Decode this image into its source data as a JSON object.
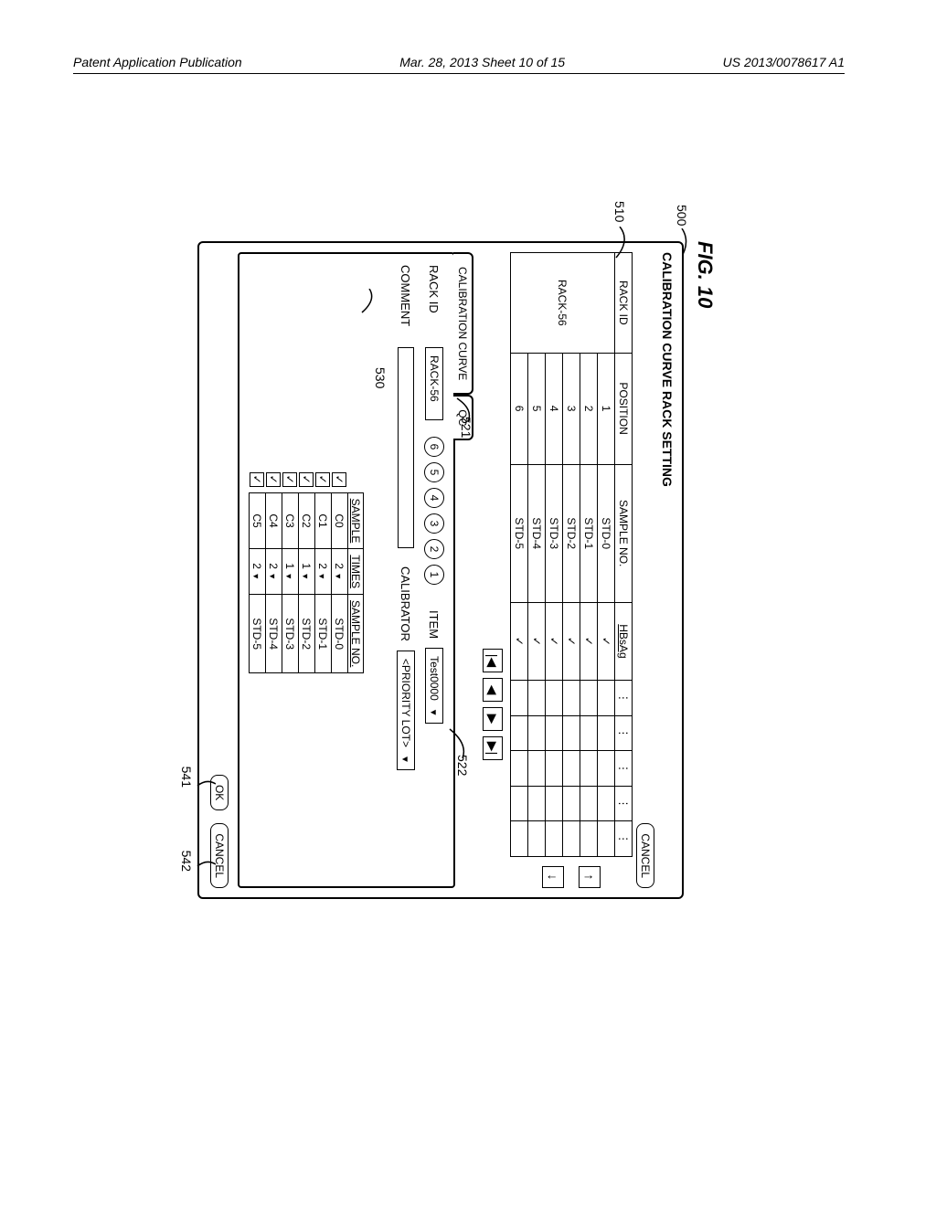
{
  "header": {
    "left": "Patent Application Publication",
    "mid": "Mar. 28, 2013  Sheet 10 of 15",
    "right": "US 2013/0078617 A1"
  },
  "fig_label": "FIG. 10",
  "callouts": {
    "c500": "500",
    "c510": "510",
    "c521": "521",
    "c522": "522",
    "c530": "530",
    "c541": "541",
    "c542": "542"
  },
  "window": {
    "title": "CALIBRATION CURVE RACK SETTING",
    "cancel_top": "CANCEL",
    "table": {
      "headers": [
        "RACK ID",
        "POSITION",
        "SAMPLE NO.",
        "HBsAg",
        "⋮",
        "⋮",
        "⋮",
        "⋮",
        "⋮"
      ],
      "rack_id": "RACK-56",
      "rows": [
        {
          "pos": "1",
          "samp": "STD-0",
          "h": "✓"
        },
        {
          "pos": "2",
          "samp": "STD-1",
          "h": "✓"
        },
        {
          "pos": "3",
          "samp": "STD-2",
          "h": "✓"
        },
        {
          "pos": "4",
          "samp": "STD-3",
          "h": "✓"
        },
        {
          "pos": "5",
          "samp": "STD-4",
          "h": "✓"
        },
        {
          "pos": "6",
          "samp": "STD-5",
          "h": "✓"
        }
      ]
    },
    "arrow_up": "↑",
    "arrow_down": "↓",
    "pager": [
      "|◀",
      "◀",
      "▶",
      "▶|"
    ],
    "tab1": "CALIBRATION CURVE",
    "tab2": "QC",
    "rack_id_lbl": "RACK ID",
    "rack_id_val": "RACK-56",
    "positions": [
      "6",
      "5",
      "4",
      "3",
      "2",
      "1"
    ],
    "item_lbl": "ITEM",
    "item_val": "Test0000",
    "comment_lbl": "COMMENT",
    "calibrator_lbl": "CALIBRATOR",
    "calibrator_val": "<PRIORITY LOT>",
    "sample_table": {
      "headers": [
        "",
        "SAMPLE",
        "TIMES",
        "SAMPLE NO."
      ],
      "rows": [
        {
          "c": "✓",
          "s": "C0",
          "t": "2",
          "n": "STD-0"
        },
        {
          "c": "✓",
          "s": "C1",
          "t": "2",
          "n": "STD-1"
        },
        {
          "c": "✓",
          "s": "C2",
          "t": "1",
          "n": "STD-2"
        },
        {
          "c": "✓",
          "s": "C3",
          "t": "1",
          "n": "STD-3"
        },
        {
          "c": "✓",
          "s": "C4",
          "t": "2",
          "n": "STD-4"
        },
        {
          "c": "✓",
          "s": "C5",
          "t": "2",
          "n": "STD-5"
        }
      ]
    },
    "ok_btn": "OK",
    "cancel_btn": "CANCEL"
  }
}
